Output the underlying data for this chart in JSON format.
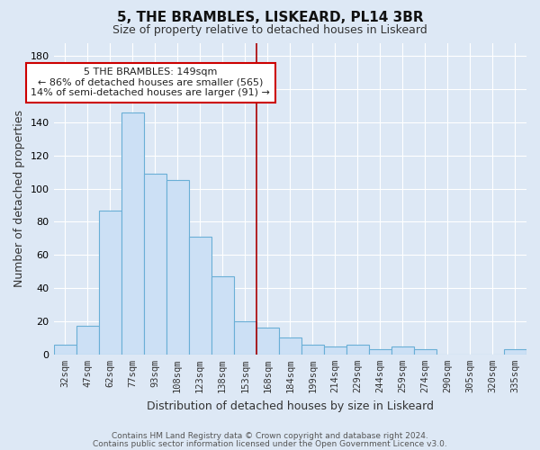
{
  "title": "5, THE BRAMBLES, LISKEARD, PL14 3BR",
  "subtitle": "Size of property relative to detached houses in Liskeard",
  "xlabel": "Distribution of detached houses by size in Liskeard",
  "ylabel": "Number of detached properties",
  "bar_labels": [
    "32sqm",
    "47sqm",
    "62sqm",
    "77sqm",
    "93sqm",
    "108sqm",
    "123sqm",
    "138sqm",
    "153sqm",
    "168sqm",
    "184sqm",
    "199sqm",
    "214sqm",
    "229sqm",
    "244sqm",
    "259sqm",
    "274sqm",
    "290sqm",
    "305sqm",
    "320sqm",
    "335sqm"
  ],
  "bar_values": [
    6,
    17,
    87,
    146,
    109,
    105,
    71,
    47,
    20,
    16,
    10,
    6,
    5,
    6,
    3,
    5,
    3,
    0,
    0,
    0,
    3
  ],
  "bar_color": "#cce0f5",
  "bar_edge_color": "#6aafd6",
  "vline_x": 8.5,
  "vline_color": "#aa0000",
  "ylim": [
    0,
    188
  ],
  "yticks": [
    0,
    20,
    40,
    60,
    80,
    100,
    120,
    140,
    160,
    180
  ],
  "annotation_title": "5 THE BRAMBLES: 149sqm",
  "annotation_line1": "← 86% of detached houses are smaller (565)",
  "annotation_line2": "14% of semi-detached houses are larger (91) →",
  "annotation_box_color": "#ffffff",
  "annotation_box_edge": "#cc0000",
  "footer_line1": "Contains HM Land Registry data © Crown copyright and database right 2024.",
  "footer_line2": "Contains public sector information licensed under the Open Government Licence v3.0.",
  "background_color": "#dde8f5",
  "plot_background": "#dde8f5",
  "grid_color": "#ffffff",
  "title_fontsize": 11,
  "subtitle_fontsize": 9,
  "ylabel_fontsize": 9,
  "xlabel_fontsize": 9,
  "tick_fontsize": 7.5,
  "footer_fontsize": 6.5
}
